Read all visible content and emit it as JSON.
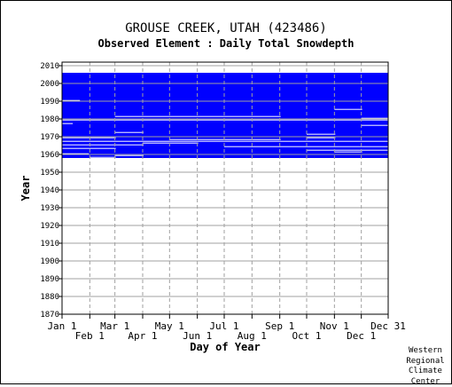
{
  "header": {
    "title": "GROUSE CREEK, UTAH   (423486)",
    "subtitle": "Observed Element : Daily Total Snowdepth"
  },
  "credit": [
    "Western",
    "Regional",
    "Climate",
    "Center"
  ],
  "colors": {
    "data": "#0000ff",
    "grid": "#a0a0a0",
    "axis": "#000000",
    "background": "#ffffff"
  },
  "chart_data": {
    "type": "heatmap",
    "title": "GROUSE CREEK, UTAH   (423486)",
    "subtitle": "Observed Element : Daily Total Snowdepth",
    "xlabel": "Day of Year",
    "ylabel": "Year",
    "xlim": [
      1,
      365
    ],
    "ylim": [
      1870,
      2012
    ],
    "grid": true,
    "x_ticks_row1": [
      {
        "label": "Jan 1",
        "doy": 1
      },
      {
        "label": "Mar 1",
        "doy": 60
      },
      {
        "label": "May 1",
        "doy": 121
      },
      {
        "label": "Jul 1",
        "doy": 182
      },
      {
        "label": "Sep 1",
        "doy": 244
      },
      {
        "label": "Nov 1",
        "doy": 305
      },
      {
        "label": "Dec 31",
        "doy": 365
      }
    ],
    "x_ticks_row2": [
      {
        "label": "Feb 1",
        "doy": 32
      },
      {
        "label": "Apr 1",
        "doy": 91
      },
      {
        "label": "Jun 1",
        "doy": 152
      },
      {
        "label": "Aug 1",
        "doy": 213
      },
      {
        "label": "Oct 1",
        "doy": 274
      },
      {
        "label": "Dec 1",
        "doy": 335
      }
    ],
    "y_ticks": [
      2010,
      2000,
      1990,
      1980,
      1970,
      1960,
      1950,
      1940,
      1930,
      1920,
      1910,
      1900,
      1890,
      1880,
      1870
    ],
    "record_years": [
      1958,
      2005
    ],
    "gaps": [
      {
        "year": 1979,
        "start_doy": 1,
        "end_doy": 365
      },
      {
        "year": 1972,
        "start_doy": 60,
        "end_doy": 91
      },
      {
        "year": 1969,
        "start_doy": 1,
        "end_doy": 60
      },
      {
        "year": 1968,
        "start_doy": 121,
        "end_doy": 244
      },
      {
        "year": 1967,
        "start_doy": 1,
        "end_doy": 365
      },
      {
        "year": 1966,
        "start_doy": 91,
        "end_doy": 152
      },
      {
        "year": 1965,
        "start_doy": 1,
        "end_doy": 91
      },
      {
        "year": 1964,
        "start_doy": 182,
        "end_doy": 365
      },
      {
        "year": 1963,
        "start_doy": 1,
        "end_doy": 60
      },
      {
        "year": 1962,
        "start_doy": 274,
        "end_doy": 365
      },
      {
        "year": 1960,
        "start_doy": 1,
        "end_doy": 30
      },
      {
        "year": 1959,
        "start_doy": 60,
        "end_doy": 91
      },
      {
        "year": 1981,
        "start_doy": 60,
        "end_doy": 244
      },
      {
        "year": 1976,
        "start_doy": 335,
        "end_doy": 365
      },
      {
        "year": 1971,
        "start_doy": 274,
        "end_doy": 305
      },
      {
        "year": 1969,
        "start_doy": 274,
        "end_doy": 305
      },
      {
        "year": 1990,
        "start_doy": 1,
        "end_doy": 20
      },
      {
        "year": 1985,
        "start_doy": 305,
        "end_doy": 335
      },
      {
        "year": 1980,
        "start_doy": 335,
        "end_doy": 365
      },
      {
        "year": 1977,
        "start_doy": 1,
        "end_doy": 12
      },
      {
        "year": 1961,
        "start_doy": 305,
        "end_doy": 335
      },
      {
        "year": 1958,
        "start_doy": 32,
        "end_doy": 60
      }
    ]
  }
}
